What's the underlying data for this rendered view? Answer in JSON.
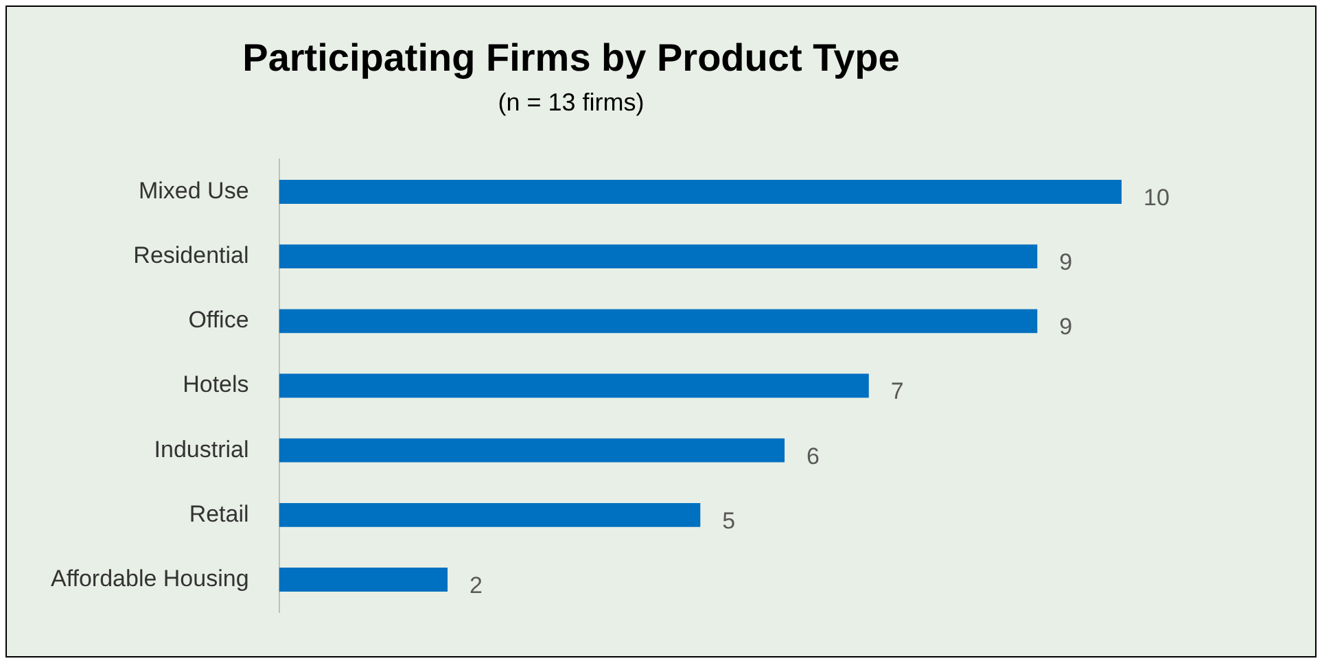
{
  "chart_data": {
    "type": "bar",
    "orientation": "horizontal",
    "title": "Participating Firms by Product Type",
    "subtitle": "(n = 13 firms)",
    "categories": [
      "Mixed Use",
      "Residential",
      "Office",
      "Hotels",
      "Industrial",
      "Retail",
      "Affordable Housing"
    ],
    "values": [
      10,
      9,
      9,
      7,
      6,
      5,
      2
    ],
    "color": "#0070c0",
    "data_labels": true,
    "grid": false,
    "legend": false
  }
}
